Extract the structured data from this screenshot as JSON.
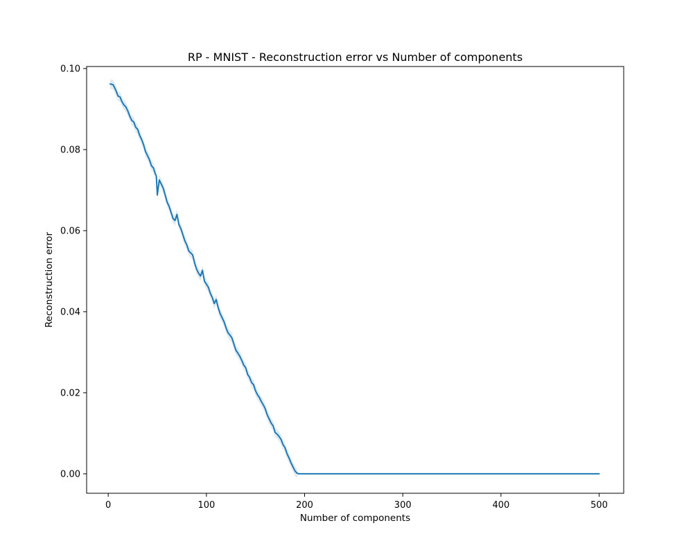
{
  "chart_data": {
    "type": "line",
    "title": "RP - MNIST - Reconstruction error vs Number of components",
    "xlabel": "Number of components",
    "ylabel": "Reconstruction error",
    "xlim": [
      -22,
      525
    ],
    "ylim": [
      -0.0048,
      0.1005
    ],
    "xticks": [
      0,
      100,
      200,
      300,
      400,
      500
    ],
    "xtick_labels": [
      "0",
      "100",
      "200",
      "300",
      "400",
      "500"
    ],
    "yticks": [
      0.0,
      0.02,
      0.04,
      0.06,
      0.08,
      0.1
    ],
    "ytick_labels": [
      "0.00",
      "0.02",
      "0.04",
      "0.06",
      "0.08",
      "0.10"
    ],
    "grid": false,
    "legend": "none",
    "series_color": "#1f77b4",
    "band_color": "#1f77b4",
    "series": [
      {
        "x": [
          2,
          5,
          8,
          10,
          12,
          14,
          16,
          18,
          20,
          22,
          24,
          26,
          28,
          30,
          32,
          34,
          36,
          38,
          40,
          42,
          44,
          46,
          48,
          49,
          50,
          52,
          54,
          56,
          58,
          60,
          62,
          64,
          66,
          68,
          70,
          72,
          74,
          76,
          78,
          80,
          82,
          84,
          86,
          88,
          90,
          92,
          94,
          96,
          98,
          100,
          102,
          104,
          106,
          108,
          110,
          112,
          114,
          116,
          118,
          120,
          122,
          124,
          126,
          128,
          130,
          132,
          134,
          136,
          138,
          140,
          142,
          144,
          146,
          148,
          150,
          152,
          154,
          156,
          158,
          160,
          162,
          164,
          166,
          168,
          170,
          172,
          174,
          176,
          178,
          180,
          182,
          184,
          186,
          188,
          190,
          192,
          194,
          196,
          198,
          200,
          250,
          300,
          350,
          400,
          450,
          500
        ],
        "y": [
          0.0962,
          0.096,
          0.0945,
          0.0932,
          0.093,
          0.0918,
          0.091,
          0.0905,
          0.0895,
          0.0882,
          0.0872,
          0.0868,
          0.0855,
          0.085,
          0.0835,
          0.0825,
          0.0812,
          0.0795,
          0.0785,
          0.0775,
          0.076,
          0.0755,
          0.074,
          0.0735,
          0.0688,
          0.0725,
          0.0715,
          0.0705,
          0.0688,
          0.067,
          0.066,
          0.0645,
          0.063,
          0.0625,
          0.064,
          0.0615,
          0.0605,
          0.059,
          0.0575,
          0.0565,
          0.055,
          0.0545,
          0.054,
          0.052,
          0.0505,
          0.0495,
          0.0488,
          0.0502,
          0.0475,
          0.0468,
          0.046,
          0.0445,
          0.0435,
          0.042,
          0.043,
          0.041,
          0.0395,
          0.0385,
          0.0375,
          0.036,
          0.0348,
          0.0342,
          0.0335,
          0.032,
          0.0305,
          0.0298,
          0.029,
          0.028,
          0.0268,
          0.0262,
          0.0245,
          0.0238,
          0.0225,
          0.022,
          0.0205,
          0.0195,
          0.0188,
          0.0178,
          0.017,
          0.016,
          0.0145,
          0.0135,
          0.0125,
          0.0118,
          0.0102,
          0.0098,
          0.0092,
          0.0085,
          0.0072,
          0.0065,
          0.005,
          0.004,
          0.0028,
          0.0018,
          0.0008,
          0.0002,
          0.0,
          0.0,
          0.0,
          0.0,
          0.0,
          0.0,
          0.0,
          0.0,
          0.0,
          0.0
        ]
      }
    ]
  }
}
